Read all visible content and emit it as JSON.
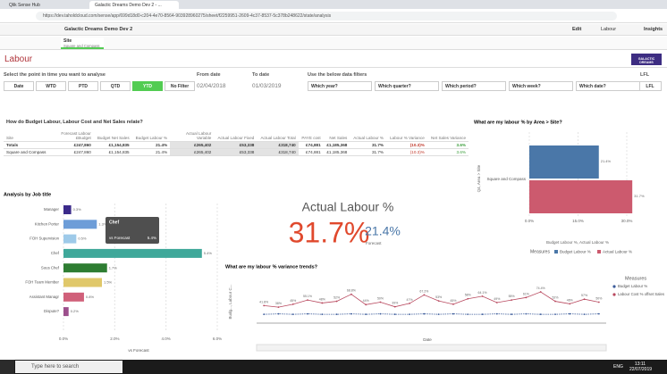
{
  "browser": {
    "tabs": [
      "Qlik Sense Hub",
      "Galactic Dreams Demo Dev 2 - ..."
    ],
    "url": "https://dev.taholdcloud.com/sense/app/699d18d0-c204-4e70-8564-903928960275/sheet/f2259951-2609-4c37-8537-5c378b248622/state/analysis"
  },
  "toolbar": {
    "app": "Galactic Dreams Demo Dev 2",
    "edit": "Edit",
    "sheet": "Labour",
    "insights": "Insights"
  },
  "selection": {
    "field": "Site",
    "value": "Square and Compass"
  },
  "header": {
    "title": "Labour",
    "logo": "GALACTIC DREAMS"
  },
  "filters": {
    "period_label": "Select the point in time you want to analyse",
    "period_buttons": [
      "Date",
      "WTD",
      "PTD",
      "QTD",
      "YTD",
      "No Filter"
    ],
    "from_label": "From date",
    "from_value": "02/04/2018",
    "to_label": "To date",
    "to_value": "01/03/2019",
    "data_label": "Use the below data filters",
    "data_buttons": [
      "Which year?",
      "Which quarter?",
      "Which period?",
      "Which week?",
      "Which date?"
    ],
    "lfl_label": "LFL",
    "lfl_button": "LFL"
  },
  "table": {
    "title": "How do Budget Labour, Labour Cost and Net Sales relate?",
    "columns": [
      "Site",
      "Forecast Labour £Budget",
      "Budget Net Sales",
      "Budget Labour %",
      "Actual Labour Variable",
      "Actual Labour Fixed",
      "Actual Labour Total",
      "PAYE cost",
      "Net Sales",
      "Actual Labour %",
      "Labour % Variance",
      "Net Sales Variance"
    ],
    "rows": [
      [
        "Totals",
        "£247,860",
        "£1,154,835",
        "21.4%",
        "£265,402",
        "£53,338",
        "£318,740",
        "£74,881",
        "£1,185,368",
        "31.7%",
        "(10.3)%",
        "3.6%"
      ],
      [
        "Square and Compass",
        "£247,860",
        "£1,154,835",
        "21.4%",
        "£265,402",
        "£53,338",
        "£318,740",
        "£74,881",
        "£1,185,368",
        "31.7%",
        "(10.3)%",
        "3.6%"
      ]
    ]
  },
  "chart_data": [
    {
      "type": "bar",
      "orientation": "horizontal",
      "title": "What are my labour % by Area > Site?",
      "y_label": "Q4, Area > Site",
      "x_label": "Budget Labour %, Actual Labour %",
      "categories": [
        "Square and Compass"
      ],
      "legend_title": "Measures",
      "series": [
        {
          "name": "Budget Labour %",
          "color": "#4a77a8",
          "values": [
            21.4
          ],
          "value_labels": [
            "21.4%"
          ]
        },
        {
          "name": "Actual Labour %",
          "color": "#cc5a6e",
          "values": [
            31.7
          ],
          "value_labels": [
            "31.7%"
          ]
        }
      ],
      "xlim": [
        0,
        30
      ],
      "xticks": [
        {
          "value": 0,
          "label": "0.0%"
        },
        {
          "value": 15,
          "label": "15.0%"
        },
        {
          "value": 30,
          "label": "30.0%"
        }
      ]
    },
    {
      "type": "bar",
      "orientation": "horizontal",
      "title": "Analysis by Job title",
      "x_label": "vs Forecast",
      "categories": [
        "Manager",
        "Kitchen Porter",
        "FOH Supervision",
        "Chef",
        "Sous Chef",
        "FOH Team Member",
        "Assistant Managr",
        "Dispute?"
      ],
      "values": [
        0.3,
        1.3,
        0.5,
        5.4,
        1.7,
        1.5,
        0.8,
        0.2
      ],
      "value_labels": [
        "0.3%",
        "1.3%",
        "0.5%",
        "5.4%",
        "1.7%",
        "1.5%",
        "0.8%",
        "0.2%"
      ],
      "colors": [
        "#3b2a8a",
        "#6d9dd8",
        "#9ecae9",
        "#3fa89a",
        "#2e7d32",
        "#e0c86a",
        "#d0607a",
        "#9c4f8c"
      ],
      "xlim": [
        0,
        6
      ],
      "xticks": [
        {
          "value": 0,
          "label": "0.0%"
        },
        {
          "value": 2,
          "label": "2.0%"
        },
        {
          "value": 4,
          "label": "4.0%"
        },
        {
          "value": 6,
          "label": "6.0%"
        }
      ],
      "tooltip": {
        "title": "Chef",
        "measure": "vs Forecast",
        "value": "5.4%"
      }
    },
    {
      "type": "kpi",
      "title": "Actual Labour %",
      "value": 31.7,
      "value_label": "31.7%",
      "compare": 21.4,
      "compare_label": "21.4%",
      "compare_caption": "Forecast"
    },
    {
      "type": "line",
      "title": "What are my labour % variance trends?",
      "y_label": "Budg..., Labour C...",
      "x_label": "Date",
      "legend_title": "Measures",
      "ylim": [
        0,
        100
      ],
      "series": [
        {
          "name": "Budget Labour %",
          "color": "#3b5b9a",
          "values": [
            21,
            22,
            21,
            22,
            21,
            21,
            22,
            21,
            22,
            21,
            21,
            22,
            21,
            22,
            21,
            21,
            22,
            21,
            22,
            21,
            21,
            22,
            21,
            22
          ]
        },
        {
          "name": "Labour Cost % offset Sales",
          "color": "#b8485e",
          "values": [
            41.8,
            38,
            45,
            55.1,
            48,
            52,
            68.8,
            44,
            50,
            39,
            47,
            67.2,
            53,
            45,
            58,
            64.1,
            49,
            55,
            61,
            74.4,
            52,
            46,
            57,
            50
          ],
          "value_labels": [
            "41.8%",
            "38%",
            "45%",
            "55.1%",
            "48%",
            "52%",
            "68.8%",
            "44%",
            "50%",
            "39%",
            "47%",
            "67.2%",
            "53%",
            "45%",
            "58%",
            "64.1%",
            "49%",
            "55%",
            "61%",
            "74.4%",
            "52%",
            "46%",
            "57%",
            "50%"
          ]
        }
      ]
    }
  ],
  "taskbar": {
    "search": "Type here to search",
    "lang": "ENG",
    "time": "13:11",
    "date": "22/07/2019"
  }
}
